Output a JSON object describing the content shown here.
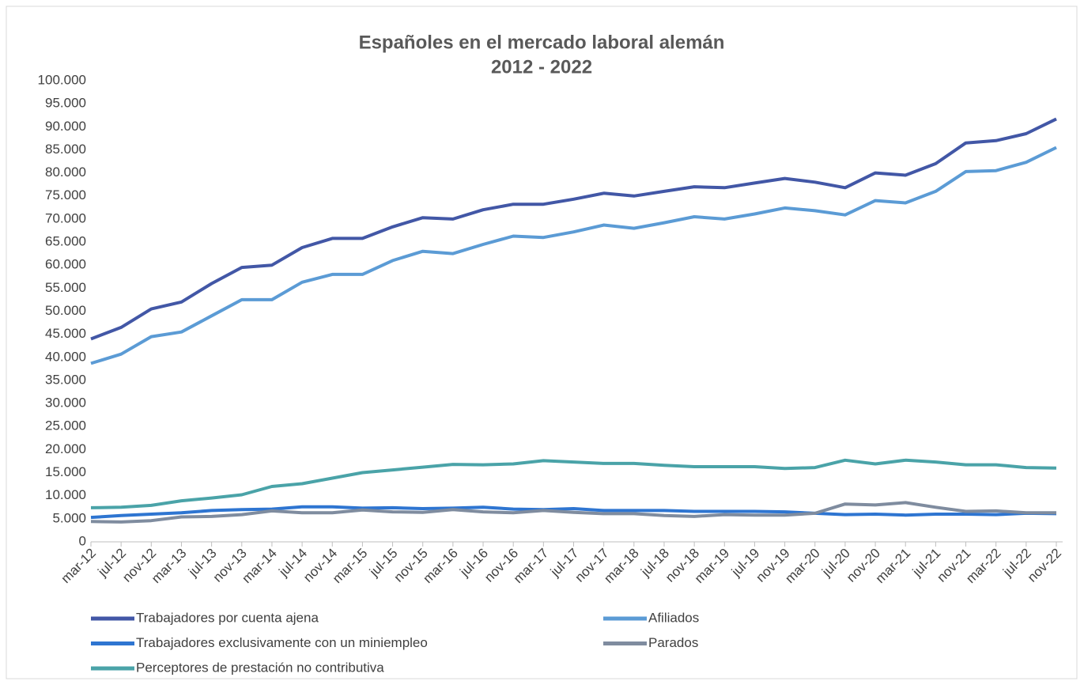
{
  "chart_data": {
    "type": "line",
    "title": "Españoles en el mercado laboral alemán",
    "subtitle": "2012 - 2022",
    "categories": [
      "mar-12",
      "jul-12",
      "nov-12",
      "mar-13",
      "jul-13",
      "nov-13",
      "mar-14",
      "jul-14",
      "nov-14",
      "mar-15",
      "jul-15",
      "nov-15",
      "mar-16",
      "jul-16",
      "nov-16",
      "mar-17",
      "jul-17",
      "nov-17",
      "mar-18",
      "jul-18",
      "nov-18",
      "mar-19",
      "jul-19",
      "nov-19",
      "mar-20",
      "jul-20",
      "nov-20",
      "mar-21",
      "jul-21",
      "nov-21",
      "mar-22",
      "jul-22",
      "nov-22"
    ],
    "series": [
      {
        "name": "Trabajadores por cuenta ajena",
        "color": "#4257a6",
        "values": [
          44000,
          46500,
          50500,
          52000,
          56000,
          59500,
          60000,
          63800,
          65800,
          65800,
          68300,
          70300,
          70000,
          72000,
          73200,
          73200,
          74300,
          75600,
          75000,
          76000,
          77000,
          76800,
          77800,
          78800,
          78000,
          76800,
          80000,
          79500,
          82000,
          86500,
          87000,
          88500,
          91700
        ]
      },
      {
        "name": "Afiliados",
        "color": "#5b9bd5",
        "values": [
          38700,
          40700,
          44500,
          45500,
          49000,
          52500,
          52500,
          56300,
          58000,
          58000,
          61000,
          63000,
          62500,
          64500,
          66300,
          66000,
          67200,
          68700,
          68000,
          69200,
          70500,
          70000,
          71100,
          72400,
          71800,
          70900,
          74000,
          73500,
          76000,
          80300,
          80500,
          82300,
          85500
        ]
      },
      {
        "name": "Trabajadores exclusivamente con un miniempleo",
        "color": "#2e75d1",
        "values": [
          5300,
          5700,
          6000,
          6300,
          6800,
          7000,
          7100,
          7600,
          7600,
          7300,
          7400,
          7200,
          7300,
          7500,
          7100,
          7000,
          7200,
          6800,
          6800,
          6800,
          6600,
          6600,
          6600,
          6500,
          6200,
          5900,
          6000,
          5800,
          6000,
          6000,
          5900,
          6200,
          6100
        ]
      },
      {
        "name": "Parados",
        "color": "#7f8c9f",
        "values": [
          4400,
          4300,
          4600,
          5400,
          5500,
          5900,
          6700,
          6300,
          6300,
          6900,
          6500,
          6400,
          7000,
          6500,
          6300,
          6800,
          6400,
          6100,
          6100,
          5700,
          5500,
          5900,
          5800,
          5800,
          6200,
          8200,
          8000,
          8500,
          7500,
          6600,
          6700,
          6300,
          6300
        ]
      },
      {
        "name": "Perceptores de prestación no contributiva",
        "color": "#4aa3a8",
        "values": [
          7400,
          7500,
          7900,
          8900,
          9500,
          10200,
          12000,
          12600,
          13800,
          15000,
          15600,
          16200,
          16800,
          16700,
          16900,
          17600,
          17300,
          17000,
          17000,
          16600,
          16300,
          16300,
          16300,
          15900,
          16100,
          17700,
          16900,
          17700,
          17300,
          16700,
          16700,
          16100,
          16000
        ]
      }
    ],
    "ylim": [
      0,
      100000
    ],
    "yticks": [
      0,
      {
        "value": 5000,
        "label": "5.000"
      },
      {
        "value": 10000,
        "label": "10.000"
      },
      {
        "value": 15000,
        "label": "15.000"
      },
      {
        "value": 20000,
        "label": "20.000"
      },
      {
        "value": 25000,
        "label": "25.000"
      },
      {
        "value": 30000,
        "label": "30.000"
      },
      {
        "value": 35000,
        "label": "35.000"
      },
      {
        "value": 40000,
        "label": "40.000"
      },
      {
        "value": 45000,
        "label": "45.000"
      },
      {
        "value": 50000,
        "label": "50.000"
      },
      {
        "value": 55000,
        "label": "55.000"
      },
      {
        "value": 60000,
        "label": "60.000"
      },
      {
        "value": 65000,
        "label": "65.000"
      },
      {
        "value": 70000,
        "label": "70.000"
      },
      {
        "value": 75000,
        "label": "75.000"
      },
      {
        "value": 80000,
        "label": "80.000"
      },
      {
        "value": 85000,
        "label": "85.000"
      },
      {
        "value": 90000,
        "label": "90.000"
      },
      {
        "value": 95000,
        "label": "95.000"
      },
      {
        "value": 100000,
        "label": "100.000"
      }
    ],
    "grid": false
  }
}
